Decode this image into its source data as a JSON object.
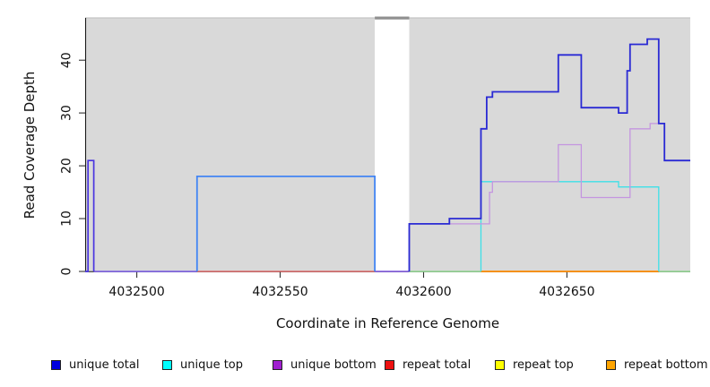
{
  "figure": {
    "x_axis_label": "Coordinate in Reference Genome",
    "y_axis_label": "Read Coverage Depth"
  },
  "chart_data": {
    "type": "line",
    "subtype": "step-coverage-plot",
    "title": "",
    "xlabel": "Coordinate in Reference Genome",
    "ylabel": "Read Coverage Depth",
    "xlim": [
      4032482,
      4032693
    ],
    "ylim": [
      0,
      48
    ],
    "grid": false,
    "legend_position": "bottom",
    "plot_bg_color": "#d9d9d9",
    "x_ticks": [
      4032500,
      4032550,
      4032600,
      4032650
    ],
    "x_tick_labels": [
      "4032500",
      "4032550",
      "4032600",
      "4032650"
    ],
    "y_ticks": [
      0,
      10,
      20,
      30,
      40
    ],
    "y_tick_labels": [
      "0",
      "10",
      "20",
      "30",
      "40"
    ],
    "gap_region": {
      "from": 4032583,
      "to": 4032595,
      "note": "white band with no shading; gray cap drawn at top"
    },
    "lines": [
      {
        "id": "baseline-repeat-total",
        "series": "repeat total at depth 0",
        "color": "#e05555",
        "w": 1.3,
        "steps": [
          [
            4032521,
            0
          ],
          [
            4032595,
            0
          ]
        ]
      },
      {
        "id": "baseline-blend-violet-left",
        "series": "all series at depth 0 (blend)",
        "color": "#7a5ce8",
        "w": 1.5,
        "steps": [
          [
            4032485,
            0
          ],
          [
            4032521,
            0
          ]
        ]
      },
      {
        "id": "baseline-blend-violet-gap",
        "series": "all series at depth 0 (blend)",
        "color": "#7a5ce8",
        "w": 1.5,
        "steps": [
          [
            4032583,
            0
          ],
          [
            4032595,
            0
          ]
        ]
      },
      {
        "id": "baseline-blend-green-left",
        "series": "unique top + repeat top at depth 0 (blend)",
        "color": "#90d690",
        "w": 1.5,
        "steps": [
          [
            4032595,
            0
          ],
          [
            4032620,
            0
          ]
        ]
      },
      {
        "id": "baseline-blend-green-right",
        "series": "unique top + repeat top at depth 0 (blend)",
        "color": "#90d690",
        "w": 1.5,
        "steps": [
          [
            4032682,
            0
          ],
          [
            4032693,
            0
          ]
        ]
      },
      {
        "id": "baseline-repeat-bottom",
        "series": "repeat bottom at depth 0",
        "color": "#ff8c00",
        "w": 1.7,
        "steps": [
          [
            4032620,
            0
          ],
          [
            4032682,
            0
          ]
        ]
      },
      {
        "id": "unique-top-line",
        "series": "unique top",
        "color": "#3de0e8",
        "w": 1.3,
        "steps": [
          [
            4032620,
            0
          ],
          [
            4032620,
            17
          ],
          [
            4032668,
            16
          ],
          [
            4032682,
            0
          ]
        ]
      },
      {
        "id": "unique-bottom-line",
        "series": "unique bottom",
        "color": "#c495e0",
        "w": 1.3,
        "steps": [
          [
            4032595,
            0
          ],
          [
            4032595,
            9
          ],
          [
            4032623,
            15
          ],
          [
            4032624,
            17
          ],
          [
            4032647,
            24
          ],
          [
            4032655,
            14
          ],
          [
            4032672,
            27
          ],
          [
            4032679,
            28
          ],
          [
            4032684,
            21
          ],
          [
            4032693,
            21
          ]
        ]
      },
      {
        "id": "unique-total-spike",
        "series": "unique total",
        "color": "#4a35e0",
        "w": 1.7,
        "steps": [
          [
            4032482,
            0
          ],
          [
            4032483,
            21
          ],
          [
            4032485,
            0
          ]
        ]
      },
      {
        "id": "unique-total-plateau",
        "series": "unique total + unique top (blend)",
        "color": "#4285f4",
        "w": 1.8,
        "steps": [
          [
            4032521,
            0
          ],
          [
            4032521,
            18
          ],
          [
            4032583,
            0
          ]
        ]
      },
      {
        "id": "unique-total-right",
        "series": "unique total",
        "color": "#2a2ad4",
        "w": 1.8,
        "steps": [
          [
            4032595,
            0
          ],
          [
            4032595,
            9
          ],
          [
            4032609,
            10
          ],
          [
            4032620,
            27
          ],
          [
            4032622,
            33
          ],
          [
            4032624,
            34
          ],
          [
            4032647,
            41
          ],
          [
            4032655,
            31
          ],
          [
            4032668,
            30
          ],
          [
            4032671,
            38
          ],
          [
            4032672,
            43
          ],
          [
            4032678,
            44
          ],
          [
            4032682,
            28
          ],
          [
            4032684,
            21
          ],
          [
            4032693,
            21
          ]
        ]
      }
    ]
  },
  "legend": {
    "items": [
      {
        "label": "unique total",
        "color": "#0000dd"
      },
      {
        "label": "unique top",
        "color": "#00ffff"
      },
      {
        "label": "unique bottom",
        "color": "#a020d0"
      },
      {
        "label": "repeat total",
        "color": "#ee1111"
      },
      {
        "label": "repeat top",
        "color": "#ffff00"
      },
      {
        "label": "repeat bottom",
        "color": "#ffa500"
      }
    ]
  }
}
